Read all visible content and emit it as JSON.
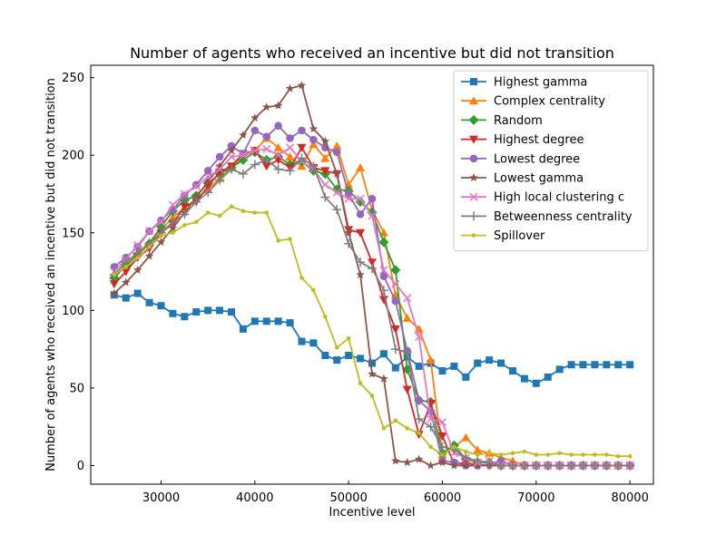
{
  "chart_data": {
    "type": "line",
    "title": "Number of agents who received an incentive but did not transition",
    "xlabel": "Incentive level",
    "ylabel": "Number of agents who received an incentive but did not transition",
    "xlim": [
      22500,
      82500
    ],
    "ylim": [
      -12,
      258
    ],
    "xticks": [
      30000,
      40000,
      50000,
      60000,
      70000,
      80000
    ],
    "yticks": [
      0,
      50,
      100,
      150,
      200,
      250
    ],
    "grid": false,
    "legend_position": "top-right",
    "x": [
      25000,
      26250,
      27500,
      28750,
      30000,
      31250,
      32500,
      33750,
      35000,
      36250,
      37500,
      38750,
      40000,
      41250,
      42500,
      43750,
      45000,
      46250,
      47500,
      48750,
      50000,
      51250,
      52500,
      53750,
      55000,
      56250,
      57500,
      58750,
      60000,
      61250,
      62500,
      63750,
      65000,
      66250,
      67500,
      68750,
      70000,
      71250,
      72500,
      73750,
      75000,
      76250,
      77500,
      78750,
      80000
    ],
    "series": [
      {
        "name": "Highest gamma",
        "color": "#1f77b4",
        "marker": "square",
        "values": [
          110,
          108,
          111,
          105,
          103,
          98,
          96,
          99,
          100,
          100,
          99,
          88,
          93,
          93,
          93,
          92,
          80,
          79,
          71,
          68,
          71,
          69,
          66,
          72,
          63,
          70,
          64,
          66,
          61,
          64,
          57,
          66,
          68,
          66,
          61,
          56,
          53,
          57,
          62,
          65,
          65,
          65,
          65,
          65,
          65
        ]
      },
      {
        "name": "Complex centrality",
        "color": "#ff7f0e",
        "marker": "triangle-up",
        "values": [
          123,
          131,
          137,
          144,
          152,
          160,
          166,
          172,
          178,
          185,
          192,
          199,
          203,
          211,
          205,
          199,
          193,
          207,
          198,
          206,
          181,
          192,
          165,
          150,
          110,
          95,
          88,
          68,
          7,
          12,
          18,
          10,
          8,
          5,
          3,
          0,
          0,
          0,
          0,
          0,
          0,
          0,
          0,
          0,
          0
        ]
      },
      {
        "name": "Random",
        "color": "#2ca02c",
        "marker": "diamond",
        "values": [
          121,
          129,
          136,
          143,
          154,
          164,
          171,
          174,
          182,
          188,
          192,
          197,
          202,
          197,
          199,
          194,
          196,
          190,
          188,
          178,
          177,
          170,
          163,
          144,
          126,
          62,
          42,
          41,
          8,
          13,
          4,
          2,
          2,
          0,
          0,
          0,
          0,
          0,
          0,
          0,
          0,
          0,
          0,
          0,
          0
        ]
      },
      {
        "name": "Highest degree",
        "color": "#d62728",
        "marker": "triangle-down",
        "values": [
          117,
          125,
          134,
          140,
          150,
          156,
          167,
          170,
          180,
          189,
          193,
          201,
          203,
          193,
          197,
          192,
          205,
          192,
          190,
          188,
          152,
          150,
          131,
          107,
          88,
          49,
          20,
          40,
          19,
          1,
          2,
          0,
          0,
          0,
          0,
          0,
          0,
          0,
          0,
          0,
          0,
          0,
          0,
          0,
          0
        ]
      },
      {
        "name": "Lowest degree",
        "color": "#9467bd",
        "marker": "circle",
        "values": [
          128,
          134,
          141,
          151,
          158,
          165,
          174,
          181,
          190,
          199,
          206,
          201,
          216,
          212,
          219,
          211,
          216,
          210,
          205,
          202,
          175,
          162,
          172,
          122,
          106,
          74,
          42,
          35,
          3,
          2,
          0,
          0,
          1,
          3,
          0,
          0,
          0,
          0,
          0,
          0,
          0,
          0,
          0,
          0,
          0
        ]
      },
      {
        "name": "Lowest gamma",
        "color": "#8c564b",
        "marker": "star",
        "values": [
          111,
          118,
          126,
          135,
          144,
          153,
          163,
          173,
          183,
          193,
          203,
          213,
          224,
          231,
          232,
          243,
          245,
          217,
          209,
          188,
          150,
          123,
          59,
          56,
          3,
          2,
          4,
          0,
          2,
          0,
          0,
          0,
          0,
          0,
          0,
          0,
          0,
          0,
          0,
          0,
          0,
          0,
          0,
          0,
          0
        ]
      },
      {
        "name": "High local clustering c",
        "color": "#e377c2",
        "marker": "x",
        "values": [
          125,
          133,
          142,
          151,
          157,
          168,
          175,
          180,
          186,
          191,
          199,
          200,
          203,
          204,
          200,
          205,
          196,
          191,
          181,
          176,
          172,
          172,
          161,
          126,
          117,
          108,
          83,
          30,
          28,
          8,
          5,
          2,
          3,
          0,
          0,
          0,
          0,
          0,
          0,
          0,
          0,
          0,
          0,
          0,
          0
        ]
      },
      {
        "name": "Betweenness centrality",
        "color": "#7f7f7f",
        "marker": "plus",
        "values": [
          123,
          131,
          137,
          143,
          150,
          157,
          162,
          170,
          176,
          184,
          191,
          188,
          194,
          197,
          191,
          190,
          198,
          193,
          173,
          165,
          143,
          131,
          127,
          113,
          75,
          73,
          30,
          25,
          12,
          10,
          5,
          3,
          2,
          0,
          0,
          0,
          0,
          0,
          0,
          0,
          0,
          0,
          0,
          0,
          0
        ]
      },
      {
        "name": "Spillover",
        "color": "#bcbd22",
        "marker": "dot",
        "values": [
          123,
          128,
          134,
          141,
          148,
          150,
          155,
          157,
          163,
          161,
          167,
          164,
          163,
          163,
          145,
          146,
          121,
          113,
          96,
          76,
          82,
          53,
          45,
          24,
          29,
          24,
          21,
          12,
          7,
          12,
          9,
          7,
          8,
          7,
          8,
          9,
          7,
          7,
          8,
          7,
          7,
          7,
          7,
          6,
          6
        ]
      }
    ]
  }
}
